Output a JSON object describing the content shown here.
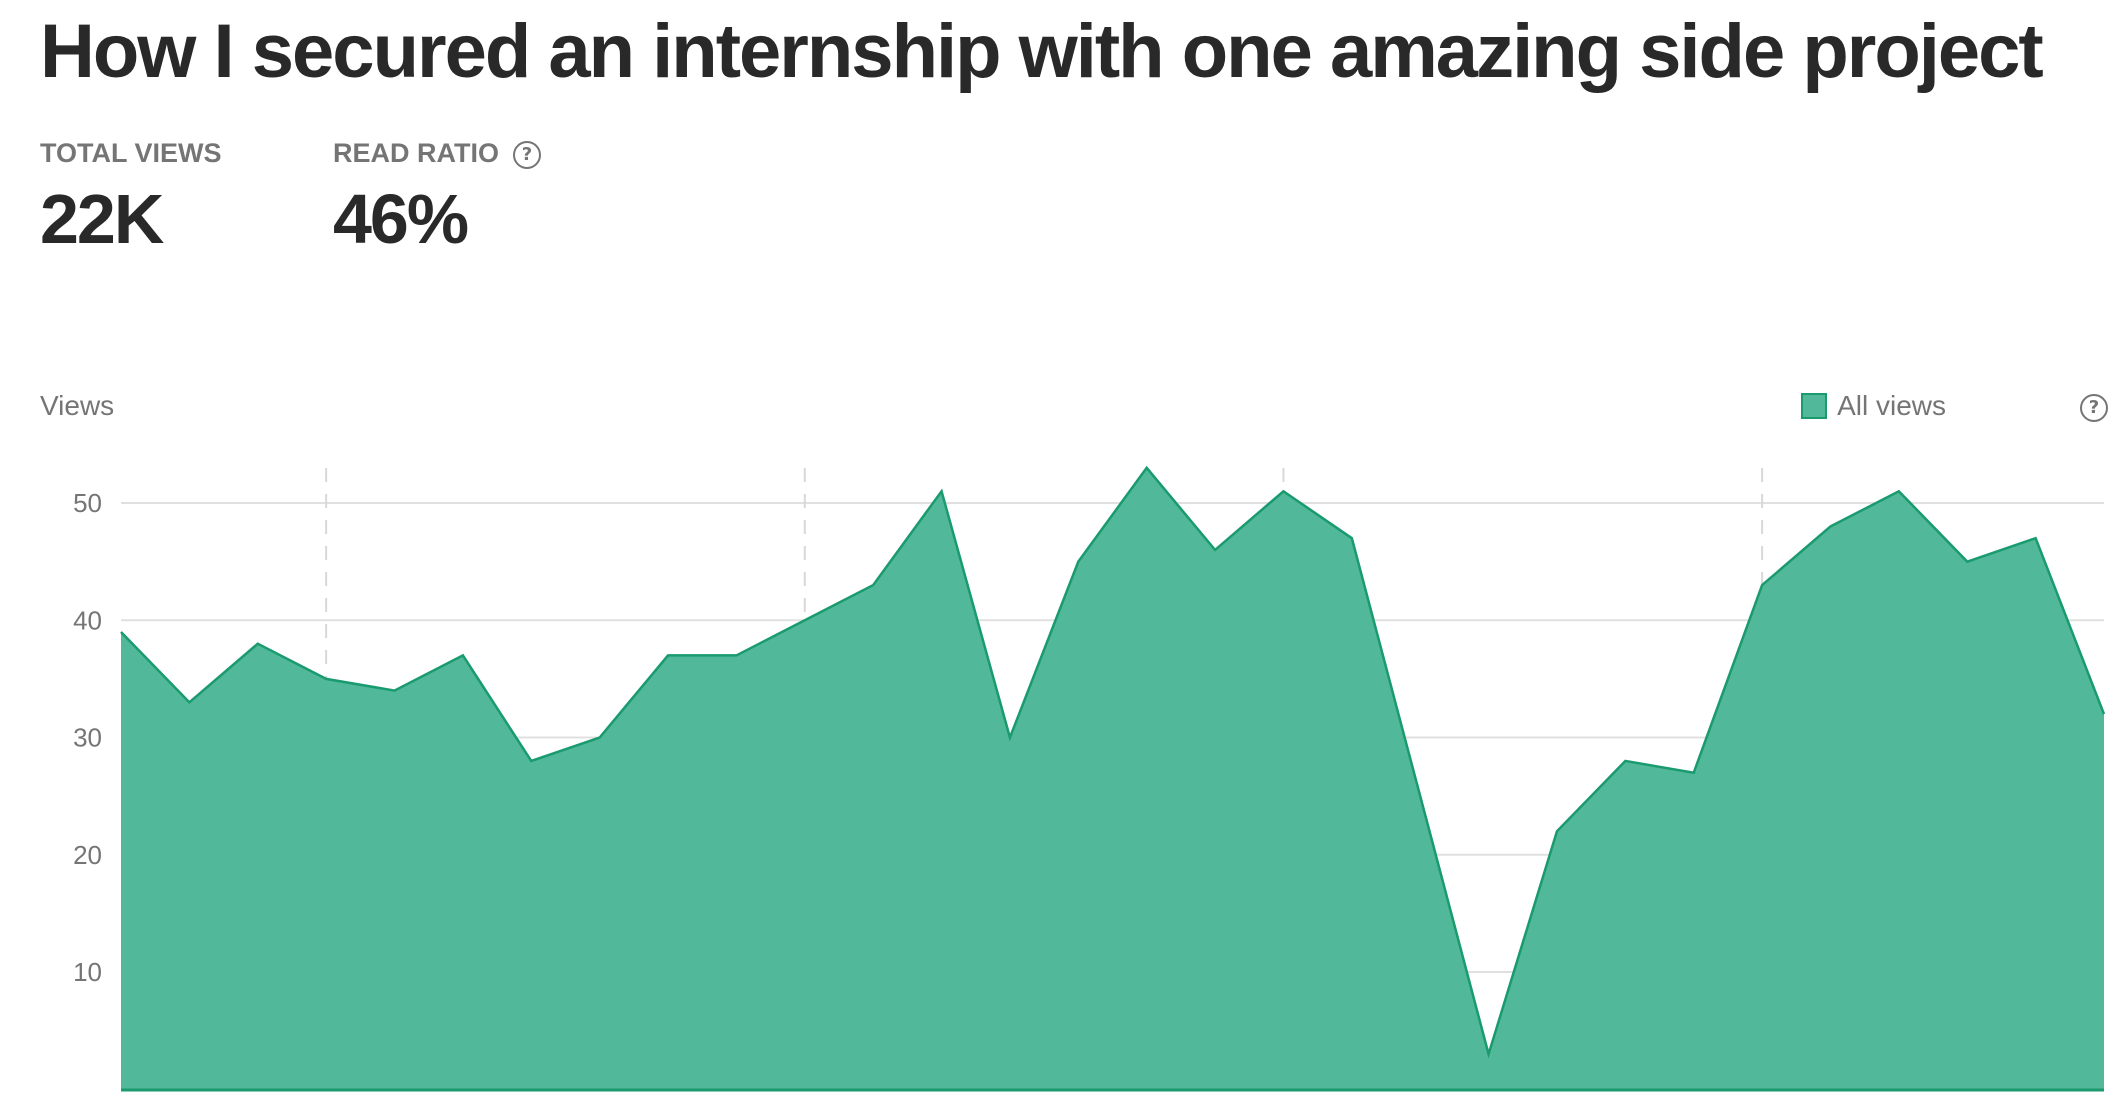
{
  "title": "How I secured an internship with one amazing side project",
  "stats": {
    "total_views": {
      "label": "TOTAL VIEWS",
      "value": "22K"
    },
    "read_ratio": {
      "label": "READ RATIO",
      "value": "46%",
      "help": "?"
    }
  },
  "legend": {
    "label": "All views",
    "help": "?"
  },
  "colors": {
    "area_fill": "#52b89a",
    "area_stroke": "#1a9a6f",
    "grid": "#e0e0e0",
    "text": "#292929",
    "muted": "#757575"
  },
  "chart_data": {
    "type": "area",
    "ylabel": "Views",
    "ylim": [
      0,
      53
    ],
    "yticks": [
      10,
      20,
      30,
      40,
      50
    ],
    "grid": true,
    "legend_position": "top-right",
    "series": [
      {
        "name": "All views",
        "values": [
          39,
          33,
          38,
          35,
          34,
          37,
          28,
          30,
          37,
          37,
          40,
          43,
          51,
          30,
          45,
          53,
          46,
          51,
          47,
          25,
          3,
          22,
          28,
          27,
          43,
          48,
          51,
          45,
          47,
          32
        ]
      }
    ]
  }
}
